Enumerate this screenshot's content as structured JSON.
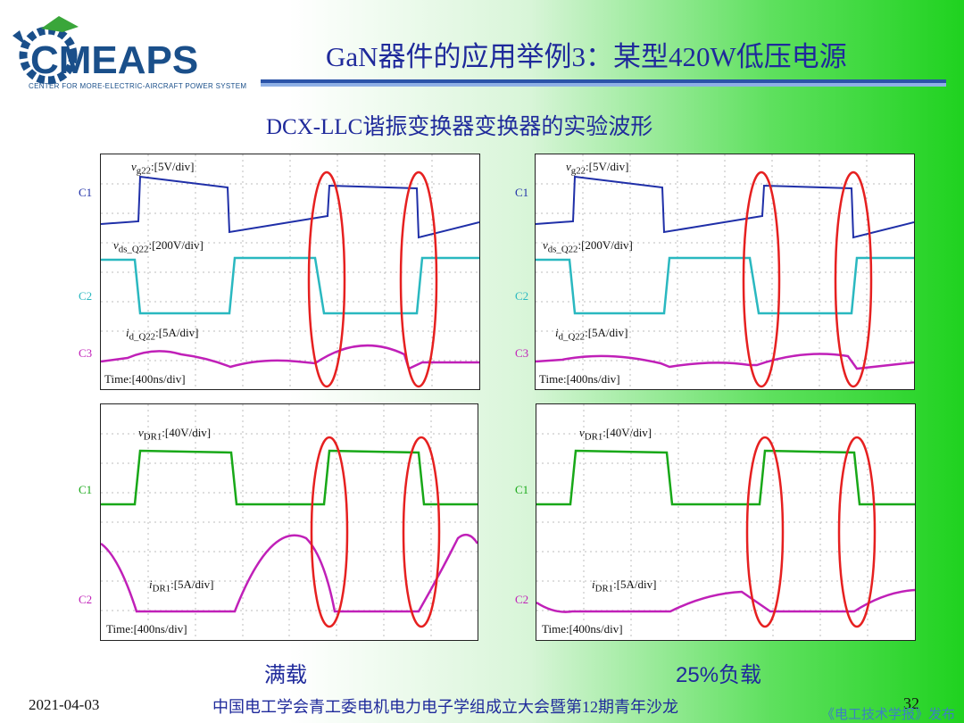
{
  "header": {
    "logo_text": "CMEAPS",
    "logo_caption": "CENTER FOR  MORE-ELECTRIC-AIRCRAFT POWER SYSTEM",
    "title": "GaN器件的应用举例3：某型420W低压电源"
  },
  "subtitle": "DCX-LLC谐振变换器变换器的实验波形",
  "scopes": {
    "top_left": {
      "label_vg": "v",
      "label_vg_sub": "g22",
      "label_vg_scale": ":[5V/div]",
      "label_vds": "v",
      "label_vds_sub": "ds_Q22",
      "label_vds_scale": ":[200V/div]",
      "label_id": "i",
      "label_id_sub": "d_Q22",
      "label_id_scale": ":[5A/div]",
      "c1": "C1",
      "c2": "C2",
      "c3": "C3",
      "time": "Time:[400ns/div]"
    },
    "top_right": {
      "label_vg": "v",
      "label_vg_sub": "g22",
      "label_vg_scale": ":[5V/div]",
      "label_vds": "v",
      "label_vds_sub": "ds_Q22",
      "label_vds_scale": ":[200V/div]",
      "label_id": "i",
      "label_id_sub": "d_Q22",
      "label_id_scale": ":[5A/div]",
      "c1": "C1",
      "c2": "C2",
      "c3": "C3",
      "time": "Time:[400ns/div]"
    },
    "bottom_left": {
      "label_v": "v",
      "label_v_sub": "DR1",
      "label_v_scale": ":[40V/div]",
      "label_i": "i",
      "label_i_sub": "DR1",
      "label_i_scale": ":[5A/div]",
      "c1": "C1",
      "c2": "C2",
      "time": "Time:[400ns/div]"
    },
    "bottom_right": {
      "label_v": "v",
      "label_v_sub": "DR1",
      "label_v_scale": ":[40V/div]",
      "label_i": "i",
      "label_i_sub": "DR1",
      "label_i_scale": ":[5A/div]",
      "c1": "C1",
      "c2": "C2",
      "time": "Time:[400ns/div]"
    }
  },
  "conditions": {
    "left": "满载",
    "right": "25%负载"
  },
  "footer": {
    "date": "2021-04-03",
    "center": "中国电工学会青工委电机电力电子学组成立大会暨第12期青年沙龙",
    "page": "32",
    "publisher": "《电工技术学报》发布"
  },
  "colors": {
    "title_blue": "#1f2a9b",
    "trace_gate": "#1f2fa8",
    "trace_vds": "#2ab8c0",
    "trace_current": "#c020b8",
    "trace_dr_voltage": "#18a818",
    "highlight": "#e62020"
  }
}
